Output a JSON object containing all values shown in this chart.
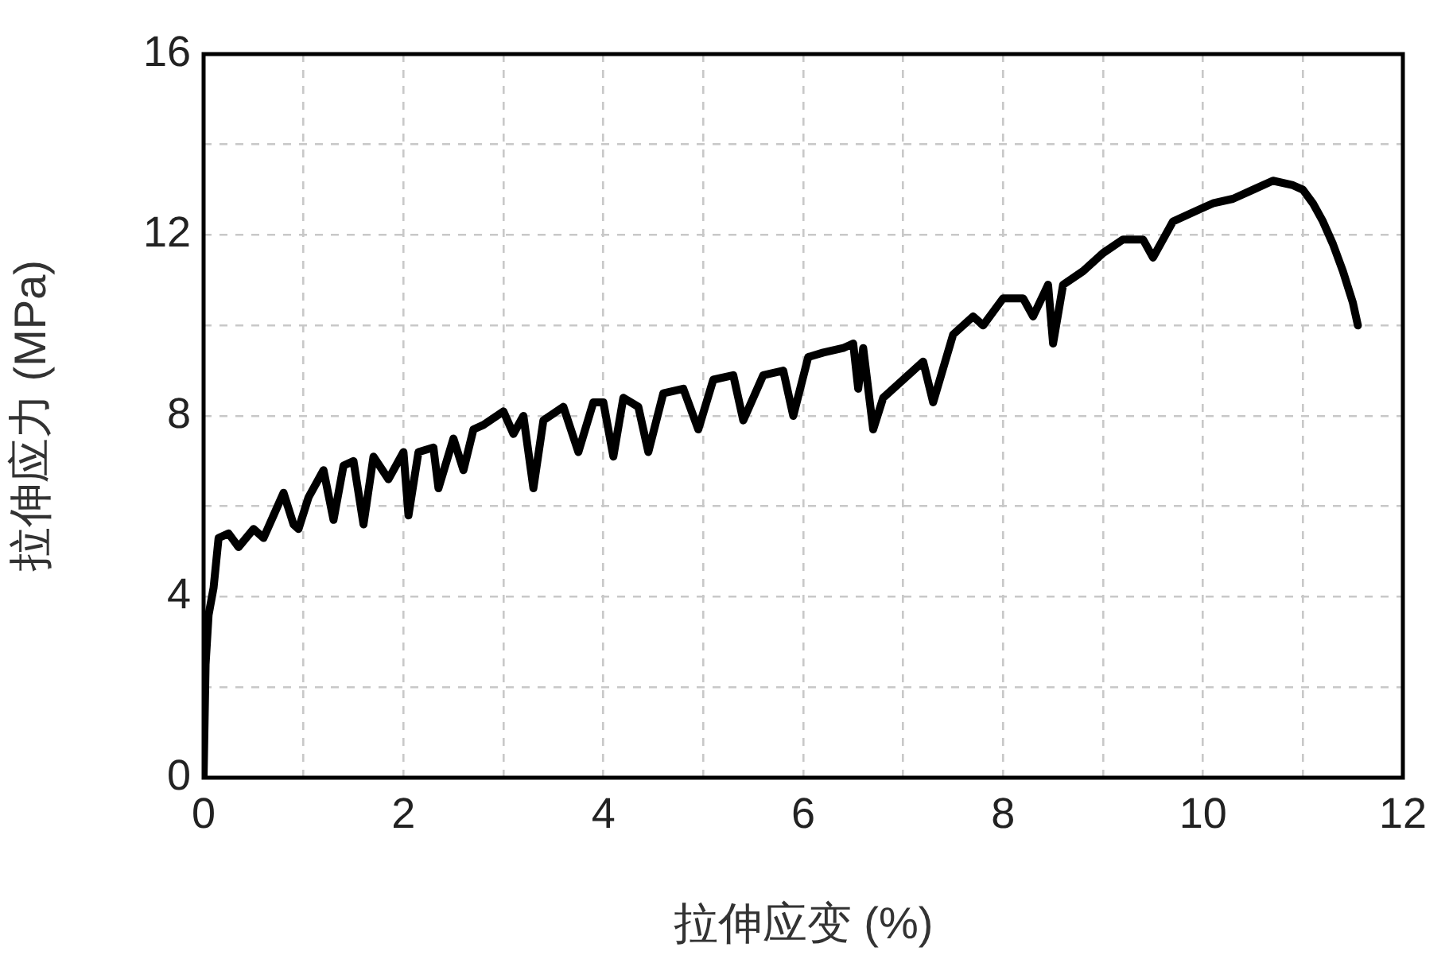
{
  "chart_data": {
    "type": "line",
    "xlabel": "拉伸应变 (%)",
    "ylabel": "拉伸应力 (MPa)",
    "color": "#000000",
    "marker": "none",
    "line_style": "solid",
    "grid": true,
    "xlim": [
      0,
      12
    ],
    "ylim": [
      0,
      16
    ],
    "xticks": [
      0,
      {
        "value": 1,
        "label": null
      },
      2,
      {
        "value": 3,
        "label": null
      },
      4,
      {
        "value": 5,
        "label": null
      },
      6,
      {
        "value": 7,
        "label": null
      },
      8,
      {
        "value": 9,
        "label": null
      },
      10,
      {
        "value": 11,
        "label": null
      },
      12
    ],
    "yticks": [
      0,
      {
        "value": 2,
        "label": null
      },
      4,
      {
        "value": 6,
        "label": null
      },
      8,
      {
        "value": 10,
        "label": null
      },
      12,
      {
        "value": 14,
        "label": null
      },
      16
    ],
    "x": [
      0,
      0.02,
      0.05,
      0.1,
      0.15,
      0.25,
      0.35,
      0.5,
      0.6,
      0.7,
      0.8,
      0.9,
      0.95,
      1.05,
      1.2,
      1.3,
      1.4,
      1.5,
      1.6,
      1.7,
      1.85,
      2.0,
      2.05,
      2.15,
      2.3,
      2.35,
      2.5,
      2.6,
      2.7,
      2.8,
      3.0,
      3.1,
      3.2,
      3.3,
      3.4,
      3.6,
      3.75,
      3.9,
      4.0,
      4.1,
      4.2,
      4.35,
      4.45,
      4.6,
      4.8,
      4.95,
      5.1,
      5.3,
      5.4,
      5.6,
      5.8,
      5.9,
      6.05,
      6.2,
      6.4,
      6.5,
      6.55,
      6.6,
      6.7,
      6.8,
      7.0,
      7.2,
      7.3,
      7.5,
      7.7,
      7.8,
      8.0,
      8.2,
      8.3,
      8.45,
      8.5,
      8.6,
      8.8,
      9.0,
      9.2,
      9.4,
      9.5,
      9.7,
      9.9,
      10.1,
      10.3,
      10.5,
      10.7,
      10.9,
      11.0,
      11.1,
      11.2,
      11.3,
      11.4,
      11.5,
      11.55
    ],
    "values": [
      0,
      2.5,
      3.6,
      4.2,
      5.3,
      5.4,
      5.1,
      5.5,
      5.3,
      5.8,
      6.3,
      5.6,
      5.5,
      6.2,
      6.8,
      5.7,
      6.9,
      7.0,
      5.6,
      7.1,
      6.6,
      7.2,
      5.8,
      7.2,
      7.3,
      6.4,
      7.5,
      6.8,
      7.7,
      7.8,
      8.1,
      7.6,
      8.0,
      6.4,
      7.9,
      8.2,
      7.2,
      8.3,
      8.3,
      7.1,
      8.4,
      8.2,
      7.2,
      8.5,
      8.6,
      7.7,
      8.8,
      8.9,
      7.9,
      8.9,
      9.0,
      8.0,
      9.3,
      9.4,
      9.5,
      9.6,
      8.6,
      9.5,
      7.7,
      8.4,
      8.8,
      9.2,
      8.3,
      9.8,
      10.2,
      10.0,
      10.6,
      10.6,
      10.2,
      10.9,
      9.6,
      10.9,
      11.2,
      11.6,
      11.9,
      11.9,
      11.5,
      12.3,
      12.5,
      12.7,
      12.8,
      13.0,
      13.2,
      13.1,
      13.0,
      12.7,
      12.3,
      11.8,
      11.2,
      10.5,
      10.0
    ]
  }
}
